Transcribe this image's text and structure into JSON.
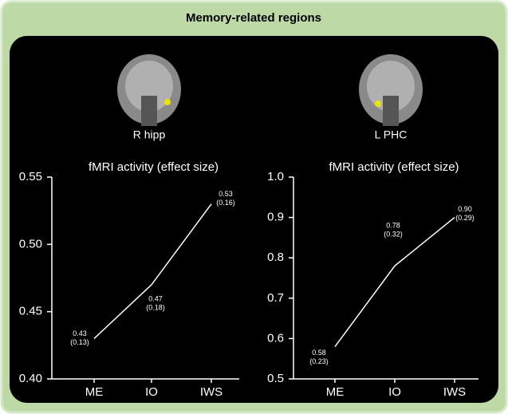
{
  "title": "Memory-related regions",
  "chart_data": [
    {
      "type": "line",
      "image_label": "R hipp",
      "title": "fMRI activity (effect size)",
      "categories": [
        "ME",
        "IO",
        "IWS"
      ],
      "values": [
        0.43,
        0.47,
        0.53
      ],
      "sd_labels": [
        "(0.13)",
        "(0.18)",
        "(0.16)"
      ],
      "color": "#ffffff",
      "ylim": [
        0.4,
        0.55
      ],
      "yticks": [
        {
          "value": 0.4,
          "label": "0.40"
        },
        0.45,
        {
          "value": 0.5,
          "label": "0.50"
        },
        0.55
      ]
    },
    {
      "type": "line",
      "image_label": "L PHC",
      "title": "fMRI activity (effect size)",
      "categories": [
        "ME",
        "IO",
        "IWS"
      ],
      "values": [
        0.58,
        0.78,
        0.9
      ],
      "value_labels": [
        "0.58",
        "0.78",
        "0.90"
      ],
      "sd_labels": [
        "(0.23)",
        "(0.32)",
        "(0.29)"
      ],
      "color": "#ffffff",
      "ylim": [
        0.5,
        1.0
      ],
      "yticks": [
        0.5,
        0.6,
        0.7,
        0.8,
        0.9,
        {
          "value": 1,
          "label": "1.0"
        }
      ]
    }
  ]
}
